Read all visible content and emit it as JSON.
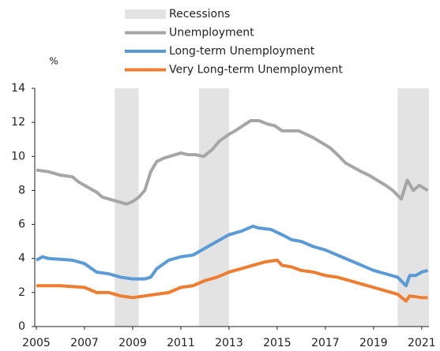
{
  "chart_data": {
    "type": "line",
    "y_label": "%",
    "xlim": [
      2005,
      2021.3
    ],
    "xticks": [
      2005,
      2007,
      2009,
      2011,
      2013,
      2015,
      2017,
      2019,
      2021
    ],
    "ylim": [
      0,
      14
    ],
    "yticks": [
      0,
      2,
      4,
      6,
      8,
      10,
      12,
      14
    ],
    "recessions": {
      "name": "Recessions",
      "color": "#e3e3e3",
      "periods": [
        [
          2008.25,
          2009.25
        ],
        [
          2011.75,
          2013.0
        ],
        [
          2020.0,
          2021.3
        ]
      ]
    },
    "series": [
      {
        "name": "Unemployment",
        "color": "#a6a6a6",
        "x": [
          2005,
          2005.5,
          2006,
          2006.5,
          2006.75,
          2007,
          2007.5,
          2007.75,
          2008,
          2008.5,
          2008.75,
          2009,
          2009.25,
          2009.5,
          2009.75,
          2010,
          2010.3,
          2011,
          2011.3,
          2011.6,
          2011.95,
          2012.3,
          2012.6,
          2013,
          2013.25,
          2013.9,
          2014.25,
          2014.6,
          2014.9,
          2015.2,
          2015.9,
          2016.5,
          2017.2,
          2017.5,
          2017.85,
          2018.5,
          2018.8,
          2019.5,
          2019.8,
          2020.15,
          2020.4,
          2020.65,
          2020.9,
          2021.25
        ],
        "values": [
          9.2,
          9.1,
          8.9,
          8.8,
          8.5,
          8.3,
          7.9,
          7.6,
          7.5,
          7.3,
          7.2,
          7.35,
          7.6,
          8.0,
          9.1,
          9.7,
          9.9,
          10.2,
          10.1,
          10.1,
          10.0,
          10.4,
          10.9,
          11.3,
          11.5,
          12.1,
          12.1,
          11.9,
          11.8,
          11.5,
          11.5,
          11.1,
          10.5,
          10.1,
          9.6,
          9.1,
          8.9,
          8.3,
          8.0,
          7.5,
          8.6,
          8.0,
          8.3,
          8.0
        ]
      },
      {
        "name": "Long-term Unemployment",
        "color": "#5b9bd5",
        "x": [
          2005,
          2005.25,
          2005.5,
          2006,
          2006.5,
          2007,
          2007.5,
          2008,
          2008.5,
          2009,
          2009.5,
          2009.75,
          2010,
          2010.5,
          2011,
          2011.5,
          2012,
          2012.5,
          2013,
          2013.5,
          2014,
          2014.2,
          2014.75,
          2015.2,
          2015.6,
          2016,
          2016.5,
          2017,
          2017.5,
          2018,
          2018.5,
          2019,
          2019.5,
          2020,
          2020.35,
          2020.5,
          2020.75,
          2021,
          2021.25
        ],
        "values": [
          3.9,
          4.1,
          4.0,
          3.95,
          3.9,
          3.7,
          3.2,
          3.1,
          2.9,
          2.8,
          2.8,
          2.9,
          3.4,
          3.9,
          4.1,
          4.2,
          4.6,
          5.0,
          5.4,
          5.6,
          5.9,
          5.8,
          5.7,
          5.4,
          5.1,
          5.0,
          4.7,
          4.5,
          4.2,
          3.9,
          3.6,
          3.3,
          3.1,
          2.9,
          2.4,
          3.0,
          3.0,
          3.2,
          3.3
        ]
      },
      {
        "name": "Very Long-term Unemployment",
        "color": "#ed7d31",
        "x": [
          2005,
          2006,
          2007,
          2007.5,
          2008,
          2008.5,
          2009,
          2009.5,
          2010,
          2010.5,
          2011,
          2011.5,
          2012,
          2012.5,
          2013,
          2013.5,
          2014,
          2014.5,
          2015,
          2015.2,
          2015.6,
          2016,
          2016.5,
          2017,
          2017.5,
          2018,
          2018.5,
          2019,
          2019.5,
          2020,
          2020.35,
          2020.5,
          2021,
          2021.25
        ],
        "values": [
          2.4,
          2.4,
          2.3,
          2.0,
          2.0,
          1.8,
          1.7,
          1.8,
          1.9,
          2.0,
          2.3,
          2.4,
          2.7,
          2.9,
          3.2,
          3.4,
          3.6,
          3.8,
          3.9,
          3.6,
          3.5,
          3.3,
          3.2,
          3.0,
          2.9,
          2.7,
          2.5,
          2.3,
          2.1,
          1.9,
          1.5,
          1.8,
          1.7,
          1.7
        ]
      }
    ]
  }
}
